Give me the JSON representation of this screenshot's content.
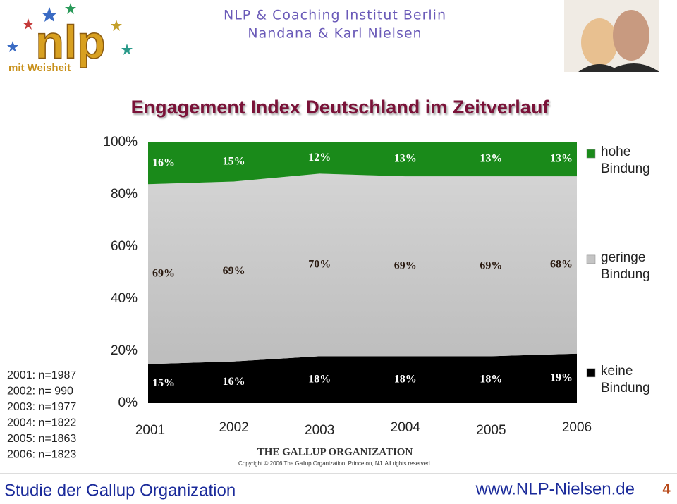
{
  "header": {
    "institute": "NLP & Coaching Institut Berlin",
    "names": "Nandana & Karl Nielsen",
    "logo_text": "nlp",
    "logo_tagline": "mit Weisheit"
  },
  "chart_data": {
    "type": "area",
    "stacked": true,
    "title": "Engagement Index Deutschland im Zeitverlauf",
    "categories": [
      "2001",
      "2002",
      "2003",
      "2004",
      "2005",
      "2006"
    ],
    "series": [
      {
        "name": "keine Bindung",
        "color": "#000000",
        "label_color": "#ffffff",
        "values": [
          15,
          16,
          18,
          18,
          18,
          19
        ],
        "value_labels": [
          "15%",
          "16%",
          "18%",
          "18%",
          "18%",
          "19%"
        ]
      },
      {
        "name": "geringe Bindung",
        "color": "#c4c4c4",
        "label_color": "#2a1a10",
        "values": [
          69,
          69,
          70,
          69,
          69,
          68
        ],
        "value_labels": [
          "69%",
          "69%",
          "70%",
          "69%",
          "69%",
          "68%"
        ]
      },
      {
        "name": "hohe Bindung",
        "color": "#1a8a1a",
        "label_color": "#ffffff",
        "values": [
          16,
          15,
          12,
          13,
          13,
          13
        ],
        "value_labels": [
          "16%",
          "15%",
          "12%",
          "13%",
          "13%",
          "13%"
        ]
      }
    ],
    "ylim": [
      0,
      100
    ],
    "yticks": [
      {
        "value": 0,
        "label": "0%"
      },
      {
        "value": 20,
        "label": "20%"
      },
      {
        "value": 40,
        "label": "40%"
      },
      {
        "value": 60,
        "label": "60%"
      },
      {
        "value": 80,
        "label": "80%"
      },
      {
        "value": 100,
        "label": "100%"
      }
    ],
    "legend": "right"
  },
  "sample_sizes": [
    "2001: n=1987",
    "2002: n= 990",
    "2003: n=1977",
    "2004: n=1822",
    "2005: n=1863",
    "2006: n=1823"
  ],
  "source": {
    "name": "THE GALLUP ORGANIZATION",
    "copyright": "Copyright © 2006 The Gallup Organization, Princeton, NJ. All rights reserved."
  },
  "footer": {
    "left": "Studie der Gallup Organization",
    "url": "www.NLP-Nielsen.de",
    "page": "4"
  }
}
